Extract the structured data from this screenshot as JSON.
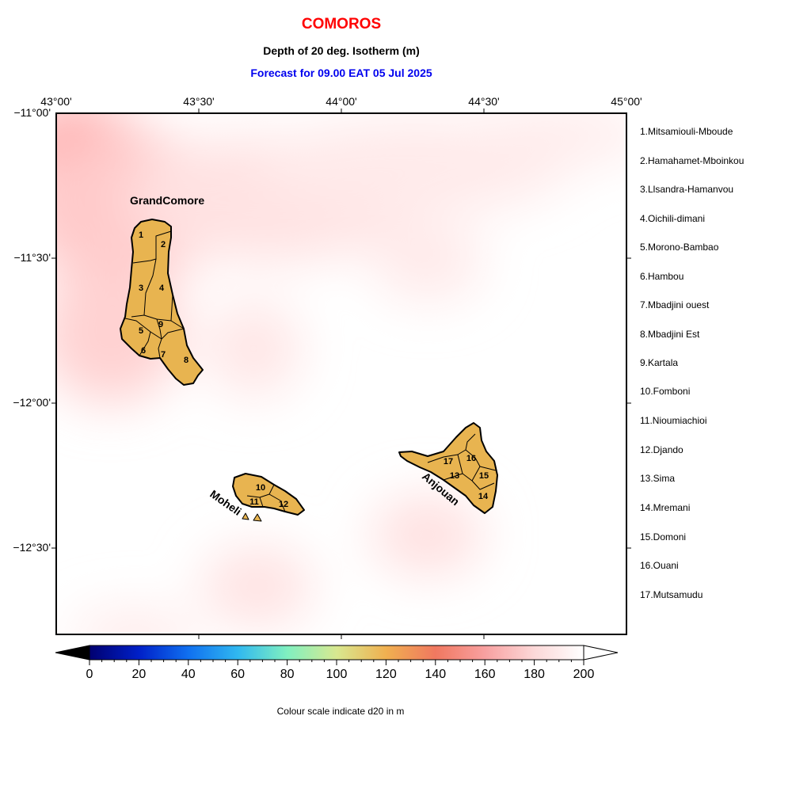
{
  "header": {
    "country": "COMOROS",
    "variable": "Depth of 20 deg. Isotherm (m)",
    "forecast": "Forecast for  09.00 EAT 05 Jul 2025"
  },
  "axes": {
    "lon_labels": [
      "43°00'",
      "43°30'",
      "44°00'",
      "44°30'",
      "45°00'"
    ],
    "lat_labels": [
      "−11°00'",
      "−11°30'",
      "−12°00'",
      "−12°30'"
    ]
  },
  "islands": {
    "grand_comore": "GrandComore",
    "moheli": "Moheli",
    "anjouan": "Anjouan"
  },
  "region_numbers": [
    "1",
    "2",
    "3",
    "4",
    "5",
    "6",
    "7",
    "8",
    "9",
    "10",
    "11",
    "12",
    "13",
    "14",
    "15",
    "16",
    "17"
  ],
  "legend": [
    "1.Mitsamiouli-Mboude",
    "2.Hamahamet-Mboinkou",
    "3.Llsandra-Hamanvou",
    "4.Oichili-dimani",
    "5.Morono-Bambao",
    "6.Hambou",
    "7.Mbadjini ouest",
    "8.Mbadjini Est",
    "9.Kartala",
    "10.Fomboni",
    "11.Nioumiachioi",
    "12.Djando",
    "13.Sima",
    "14.Mremani",
    "15.Domoni",
    "16.Ouani",
    "17.Mutsamudu"
  ],
  "colorbar": {
    "ticks": [
      "0",
      "20",
      "40",
      "60",
      "80",
      "100",
      "120",
      "140",
      "160",
      "180",
      "200"
    ],
    "caption": "Colour scale indicate d20 in m",
    "range": [
      0,
      200
    ],
    "colors": [
      "#000070",
      "#0020c8",
      "#1070f0",
      "#30b8f0",
      "#80f0c0",
      "#d8e890",
      "#f0b050",
      "#f07860",
      "#f8a0a0",
      "#fcd8d8",
      "#ffffff"
    ]
  },
  "colors": {
    "land": "#e8b450",
    "sea_field_high": "#ffffff",
    "sea_field_low": "#ffb0b0"
  }
}
